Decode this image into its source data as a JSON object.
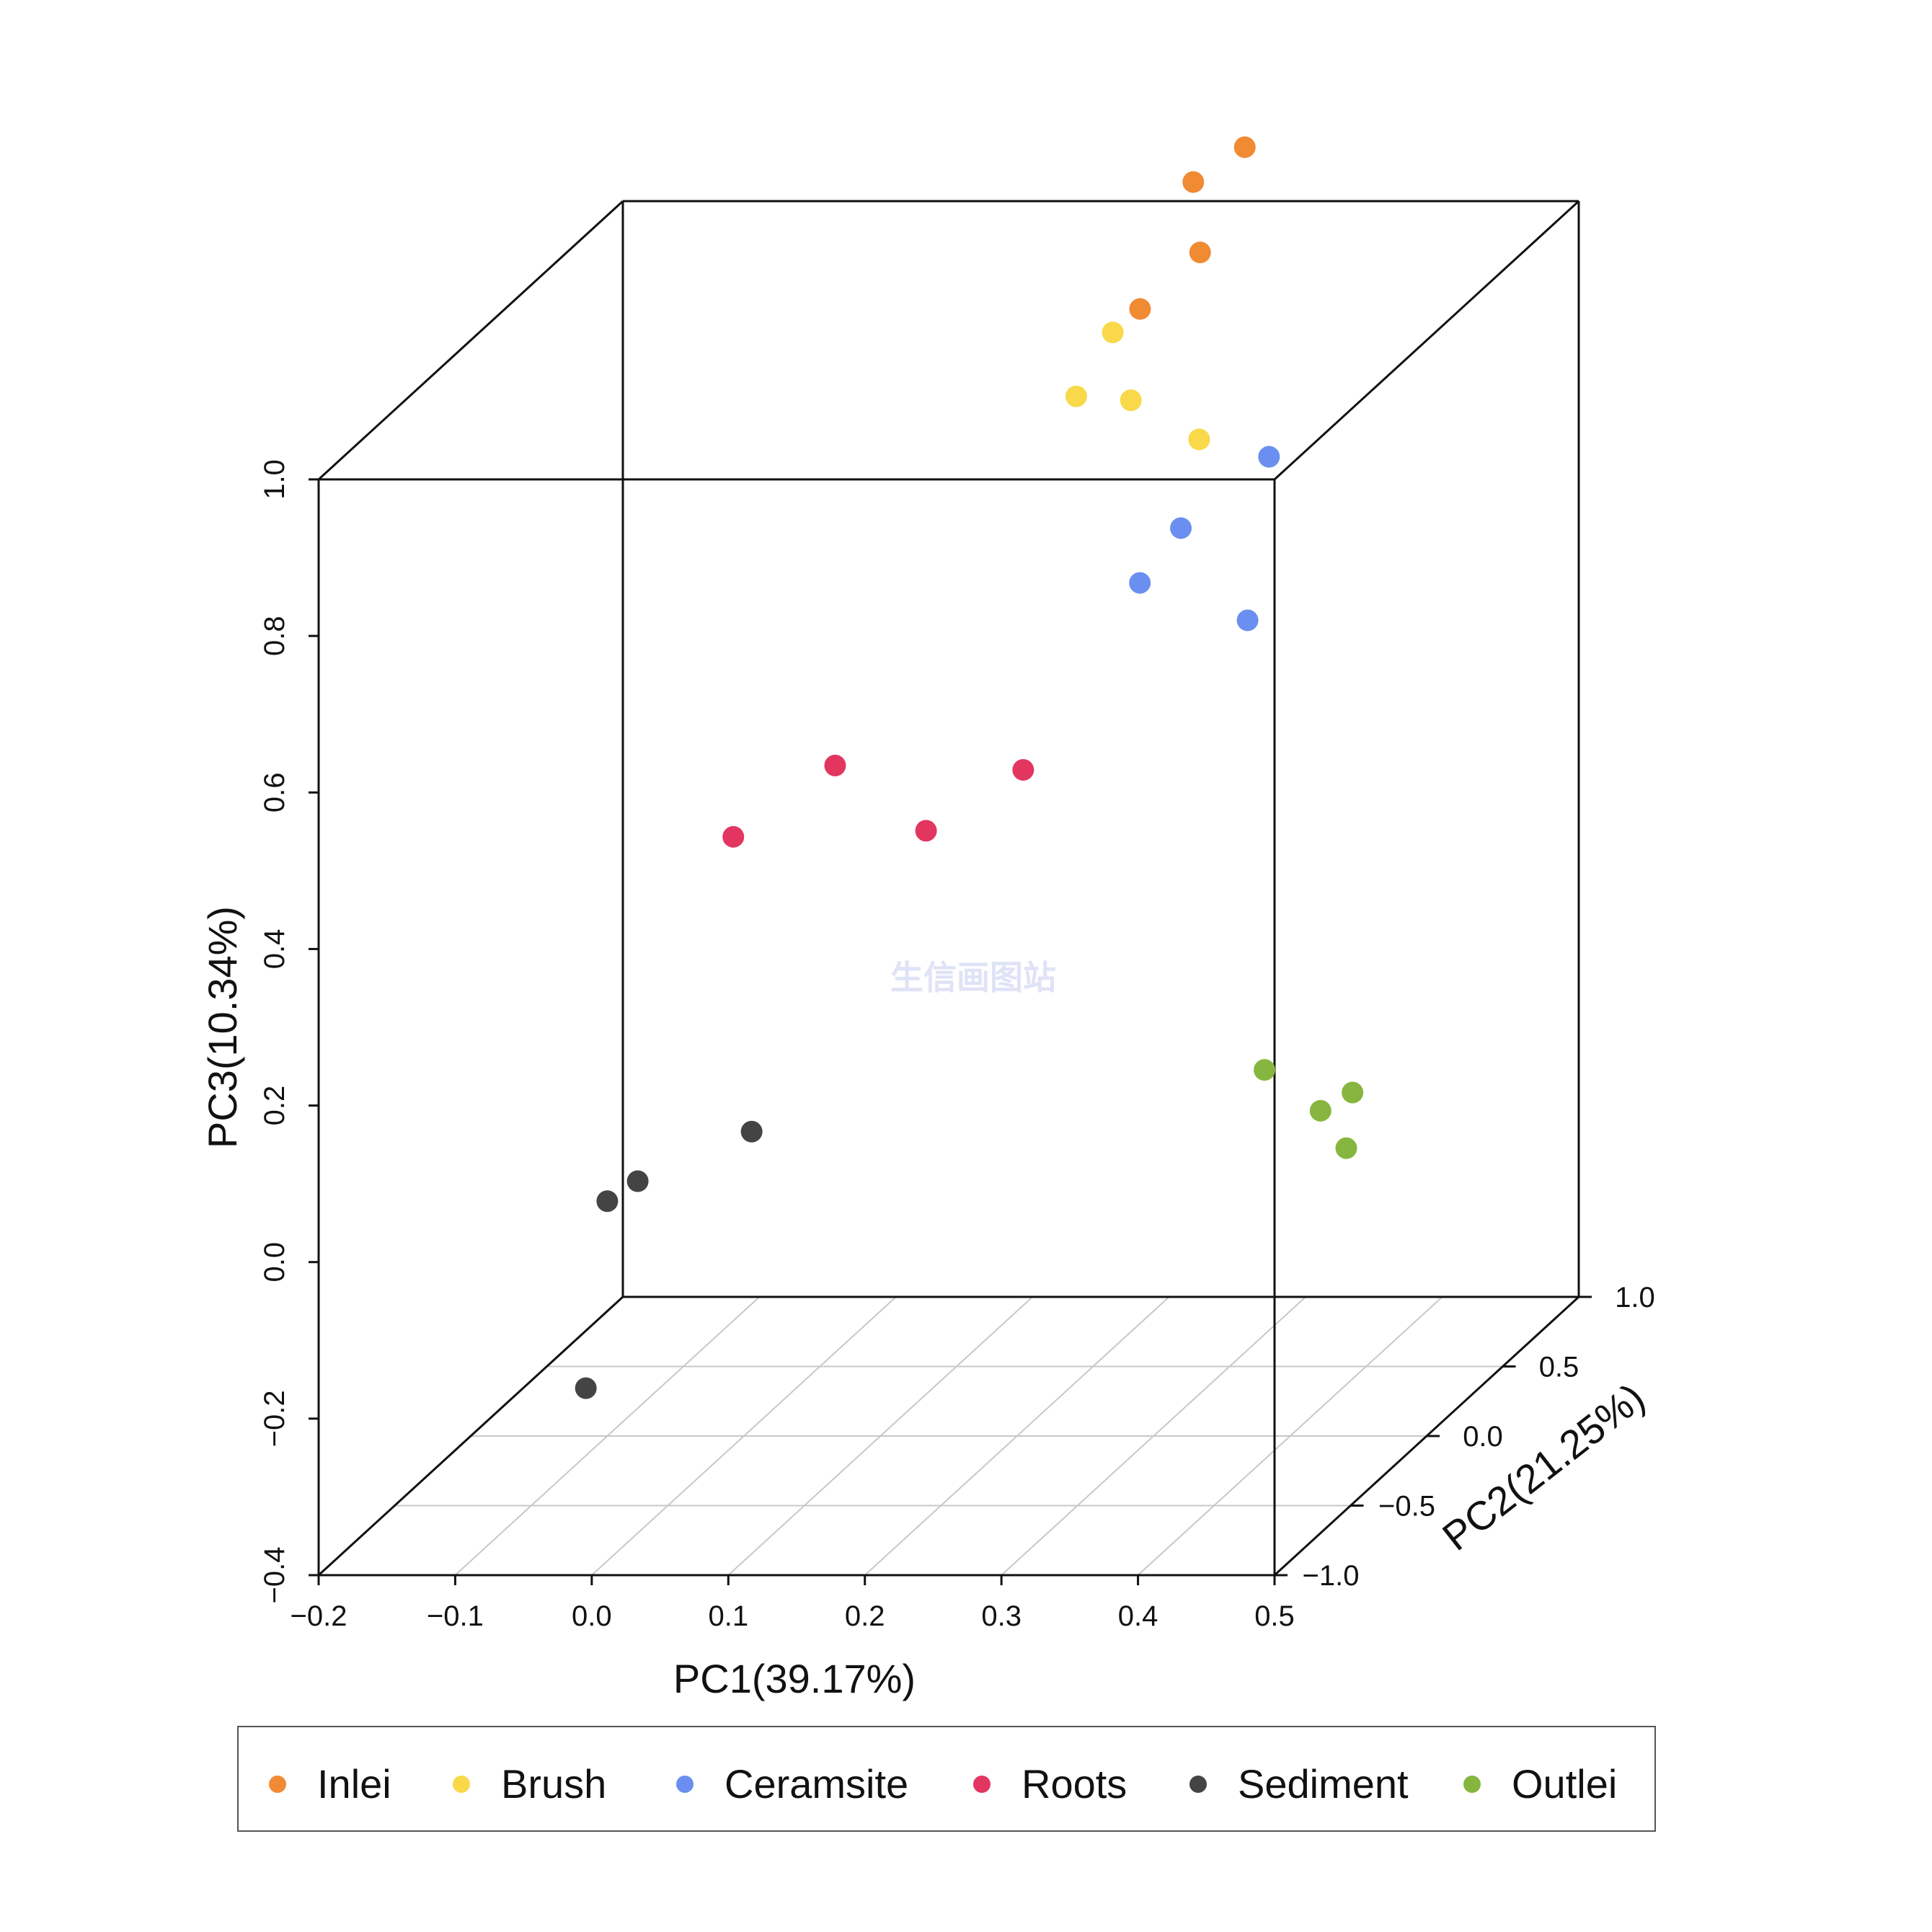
{
  "chart_data": {
    "type": "scatter",
    "dimensions": 3,
    "xlabel": "PC1(39.17%)",
    "ylabel": "PC2(21.25%)",
    "zlabel": "PC3(10.34%)",
    "xlim": [
      -0.2,
      0.5
    ],
    "ylim": [
      -1.0,
      1.0
    ],
    "zlim": [
      -0.4,
      1.0
    ],
    "x_ticks": [
      "−0.2",
      "−0.1",
      "0.0",
      "0.1",
      "0.2",
      "0.3",
      "0.4",
      "0.5"
    ],
    "y_ticks": [
      "−1.0",
      "−0.5",
      "0.0",
      "0.5",
      "1.0"
    ],
    "z_ticks": [
      "−0.4",
      "−0.2",
      "0.0",
      "0.2",
      "0.4",
      "0.6",
      "0.8",
      "1.0"
    ],
    "floor_grid": true,
    "legend_position": "bottom",
    "watermark": "生信画图站",
    "series": [
      {
        "name": "Inlei",
        "color": "#f08a33",
        "points": [
          [
            0.245,
            0.8,
            0.97
          ],
          [
            0.24,
            0.45,
            0.96
          ],
          [
            0.24,
            0.8,
            1.06
          ],
          [
            0.3,
            0.6,
            1.14
          ]
        ]
      },
      {
        "name": "Brush",
        "color": "#f9d949",
        "points": [
          [
            0.22,
            0.45,
            0.93
          ],
          [
            0.21,
            0.3,
            0.875
          ],
          [
            0.25,
            0.3,
            0.87
          ],
          [
            0.3,
            0.3,
            0.82
          ]
        ]
      },
      {
        "name": "Ceramsite",
        "color": "#6b8ff0",
        "points": [
          [
            0.34,
            0.4,
            0.78
          ],
          [
            0.32,
            0.0,
            0.76
          ],
          [
            0.29,
            0.0,
            0.69
          ],
          [
            0.38,
            -0.1,
            0.66
          ]
        ]
      },
      {
        "name": "Roots",
        "color": "#e23661",
        "points": [
          [
            0.0,
            0.6,
            0.35
          ],
          [
            -0.03,
            0.2,
            0.33
          ],
          [
            0.1,
            0.3,
            0.32
          ],
          [
            0.16,
            0.4,
            0.38
          ]
        ]
      },
      {
        "name": "Sediment",
        "color": "#444444",
        "points": [
          [
            -0.05,
            0.5,
            -0.1
          ],
          [
            -0.1,
            0.0,
            -0.1
          ],
          [
            -0.1,
            0.2,
            -0.11
          ],
          [
            -0.06,
            -0.5,
            -0.25
          ]
        ]
      },
      {
        "name": "Outlei",
        "color": "#86b63f",
        "points": [
          [
            0.32,
            0.55,
            -0.03
          ],
          [
            0.39,
            0.5,
            -0.05
          ],
          [
            0.4,
            0.2,
            -0.02
          ],
          [
            0.43,
            0.1,
            -0.05
          ]
        ]
      }
    ]
  }
}
